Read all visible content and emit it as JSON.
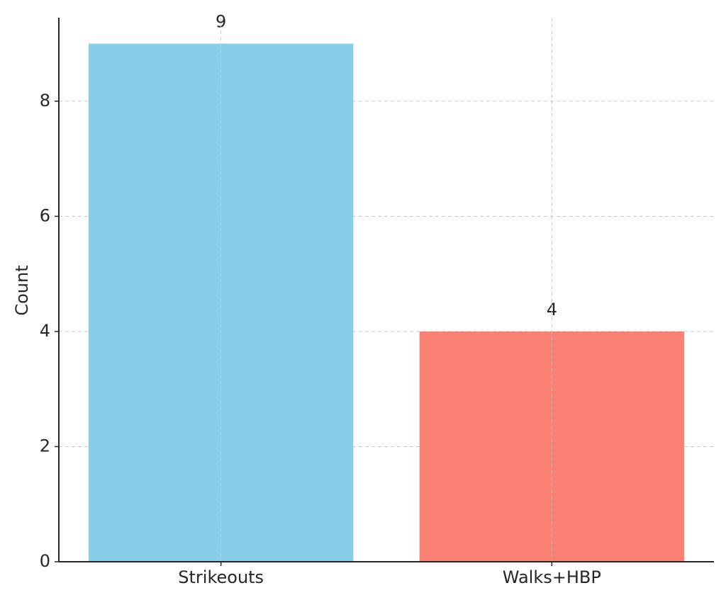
{
  "chart_data": {
    "type": "bar",
    "y_label": "Count",
    "categories": [
      "Strikeouts",
      "Walks+HBP"
    ],
    "values": [
      9,
      4
    ],
    "colors": [
      "#87ceeb",
      "#fa8072"
    ],
    "ylim": [
      0,
      9.45
    ],
    "yticks": [
      0,
      2,
      4,
      6,
      8
    ],
    "grid": true
  }
}
